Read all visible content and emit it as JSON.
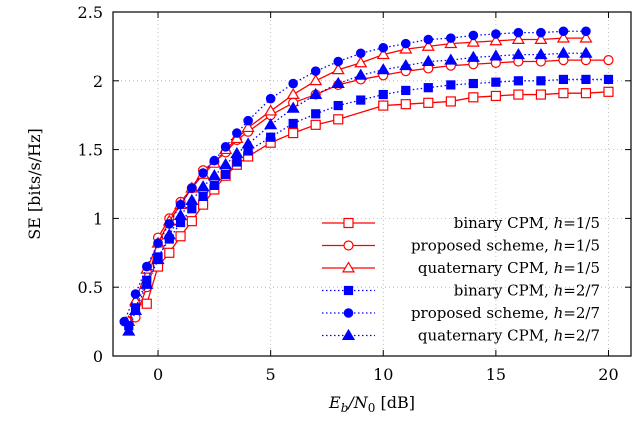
{
  "chart_data": {
    "type": "line",
    "xlabel": {
      "main": "E",
      "sub": "b",
      "mid": "/N",
      "sub2": "0",
      "unit": " [dB]"
    },
    "ylabel": "SE [bits/s/Hz]",
    "xlim": [
      -2,
      21
    ],
    "ylim": [
      0,
      2.5
    ],
    "xticks": [
      0,
      5,
      10,
      15,
      20
    ],
    "yticks": [
      0,
      0.5,
      1,
      1.5,
      2,
      2.5
    ],
    "ytick_labels": [
      "0",
      "0.5",
      "1",
      "1.5",
      "2",
      "2.5"
    ],
    "grid": true,
    "legend_position": "bottom-right",
    "series": [
      {
        "name": "binary CPM, h=1/5",
        "legend_label": "binary CPM, ",
        "legend_h": "1/5",
        "color": "#ff0000",
        "line": "solid",
        "marker": "square-open",
        "x": [
          -0.5,
          0,
          0.5,
          1,
          1.5,
          2,
          2.5,
          3,
          3.5,
          4,
          5,
          6,
          7,
          8,
          10,
          11,
          12,
          13,
          14,
          15,
          16,
          17,
          18,
          19,
          20
        ],
        "y": [
          0.38,
          0.65,
          0.75,
          0.87,
          0.98,
          1.1,
          1.21,
          1.31,
          1.39,
          1.45,
          1.55,
          1.62,
          1.68,
          1.72,
          1.82,
          1.83,
          1.84,
          1.85,
          1.88,
          1.89,
          1.9,
          1.9,
          1.91,
          1.91,
          1.92
        ]
      },
      {
        "name": "proposed scheme, h=1/5",
        "legend_label": "proposed scheme, ",
        "legend_h": "1/5",
        "color": "#ff0000",
        "line": "solid",
        "marker": "circle-open",
        "x": [
          -1,
          -0.5,
          0,
          0.5,
          1,
          1.5,
          2,
          2.5,
          3,
          3.5,
          4,
          5,
          6,
          7,
          8,
          9,
          10,
          11,
          12,
          13,
          14,
          15,
          16,
          17,
          18,
          19,
          20
        ],
        "y": [
          0.28,
          0.5,
          0.86,
          1.0,
          1.12,
          1.22,
          1.35,
          1.41,
          1.48,
          1.57,
          1.63,
          1.75,
          1.84,
          1.9,
          1.97,
          2.01,
          2.04,
          2.07,
          2.09,
          2.11,
          2.12,
          2.13,
          2.14,
          2.14,
          2.15,
          2.15,
          2.15
        ]
      },
      {
        "name": "quaternary CPM, h=1/5",
        "legend_label": "quaternary CPM, ",
        "legend_h": "1/5",
        "color": "#ff0000",
        "line": "solid",
        "marker": "triangle-open",
        "x": [
          -1.3,
          -1,
          -0.5,
          0,
          0.5,
          1,
          1.5,
          2,
          2.5,
          3,
          3.5,
          4,
          5,
          6,
          7,
          8,
          9,
          10,
          11,
          12,
          13,
          14,
          15,
          16,
          17,
          18,
          19
        ],
        "y": [
          0.25,
          0.4,
          0.63,
          0.82,
          0.98,
          1.1,
          1.22,
          1.32,
          1.4,
          1.5,
          1.58,
          1.66,
          1.78,
          1.9,
          2.0,
          2.08,
          2.13,
          2.19,
          2.23,
          2.25,
          2.27,
          2.28,
          2.29,
          2.3,
          2.3,
          2.31,
          2.31
        ]
      },
      {
        "name": "binary CPM, h=2/7",
        "legend_label": "binary CPM, ",
        "legend_h": "2/7",
        "color": "#0000ff",
        "line": "dotted",
        "marker": "square-filled",
        "x": [
          -1.3,
          -1,
          -0.5,
          0,
          0.5,
          1,
          1.5,
          2,
          2.5,
          3,
          3.5,
          4,
          5,
          6,
          7,
          8,
          9,
          10,
          11,
          12,
          13,
          14,
          15,
          16,
          17,
          18,
          19,
          20
        ],
        "y": [
          0.22,
          0.35,
          0.55,
          0.72,
          0.85,
          0.97,
          1.07,
          1.16,
          1.24,
          1.32,
          1.41,
          1.49,
          1.59,
          1.69,
          1.76,
          1.82,
          1.86,
          1.9,
          1.93,
          1.95,
          1.97,
          1.98,
          1.99,
          2.0,
          2.0,
          2.01,
          2.01,
          2.01
        ]
      },
      {
        "name": "proposed scheme, h=2/7",
        "legend_label": "proposed scheme, ",
        "legend_h": "2/7",
        "color": "#0000ff",
        "line": "dotted",
        "marker": "circle-filled",
        "x": [
          -1.5,
          -1,
          -0.5,
          0,
          0.5,
          1,
          1.5,
          2,
          2.5,
          3,
          3.5,
          4,
          5,
          6,
          7,
          8,
          9,
          10,
          11,
          12,
          13,
          14,
          15,
          16,
          17,
          18,
          19
        ],
        "y": [
          0.25,
          0.45,
          0.65,
          0.82,
          0.96,
          1.1,
          1.22,
          1.33,
          1.42,
          1.52,
          1.62,
          1.71,
          1.87,
          1.98,
          2.07,
          2.14,
          2.2,
          2.24,
          2.27,
          2.3,
          2.31,
          2.33,
          2.34,
          2.35,
          2.35,
          2.36,
          2.36
        ]
      },
      {
        "name": "quaternary CPM, h=2/7",
        "legend_label": "quaternary CPM, ",
        "legend_h": "2/7",
        "color": "#0000ff",
        "line": "dotted",
        "marker": "triangle-filled",
        "x": [
          -1.3,
          -1,
          -0.5,
          0,
          0.5,
          1,
          1.5,
          2,
          2.5,
          3,
          3.5,
          4,
          5,
          6,
          7,
          8,
          9,
          10,
          11,
          12,
          13,
          14,
          15,
          16,
          17,
          18,
          19
        ],
        "y": [
          0.18,
          0.33,
          0.52,
          0.7,
          0.88,
          1.02,
          1.13,
          1.23,
          1.31,
          1.39,
          1.47,
          1.54,
          1.68,
          1.8,
          1.9,
          1.98,
          2.04,
          2.08,
          2.11,
          2.14,
          2.15,
          2.17,
          2.18,
          2.19,
          2.19,
          2.2,
          2.2
        ]
      }
    ],
    "legend_h_symbol": "h",
    "legend_eq": "="
  }
}
